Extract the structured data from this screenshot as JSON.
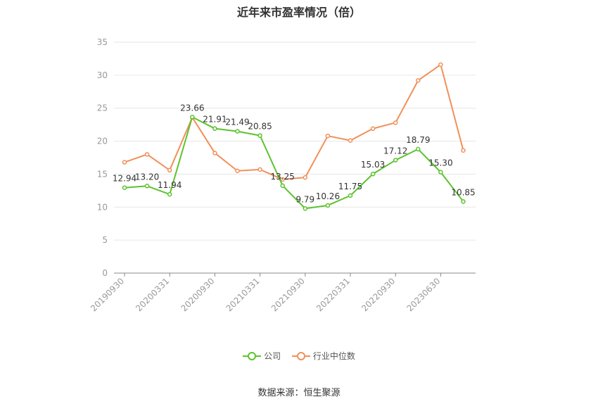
{
  "chart_data": {
    "type": "line",
    "title": "近年来市盈率情况（倍）",
    "ylim": [
      0,
      35
    ],
    "yticks": [
      0,
      5,
      10,
      15,
      20,
      25,
      30,
      35
    ],
    "grid": true,
    "legend_position": "bottom",
    "x_tick_labels": [
      "20190930",
      "20200331",
      "20200930",
      "20210331",
      "20210930",
      "20220331",
      "20220930",
      "20230630"
    ],
    "series": [
      {
        "name": "公司",
        "color": "#5cc32e",
        "values": [
          12.94,
          13.2,
          11.94,
          23.66,
          21.91,
          21.49,
          20.85,
          13.25,
          9.79,
          10.26,
          11.75,
          15.03,
          17.12,
          18.79,
          15.3,
          10.85
        ],
        "labels": [
          "12.94",
          "13.20",
          "11.94",
          "23.66",
          "21.91",
          "21.49",
          "20.85",
          "13.25",
          "9.79",
          "10.26",
          "11.75",
          "15.03",
          "17.12",
          "18.79",
          "15.30",
          "10.85"
        ]
      },
      {
        "name": "行业中位数",
        "color": "#f0905a",
        "values": [
          16.8,
          18.0,
          15.6,
          23.6,
          18.2,
          15.5,
          15.7,
          14.2,
          14.5,
          20.8,
          20.1,
          21.9,
          22.8,
          29.2,
          31.6,
          18.6
        ]
      }
    ]
  },
  "source_text": "数据来源：恒生聚源"
}
